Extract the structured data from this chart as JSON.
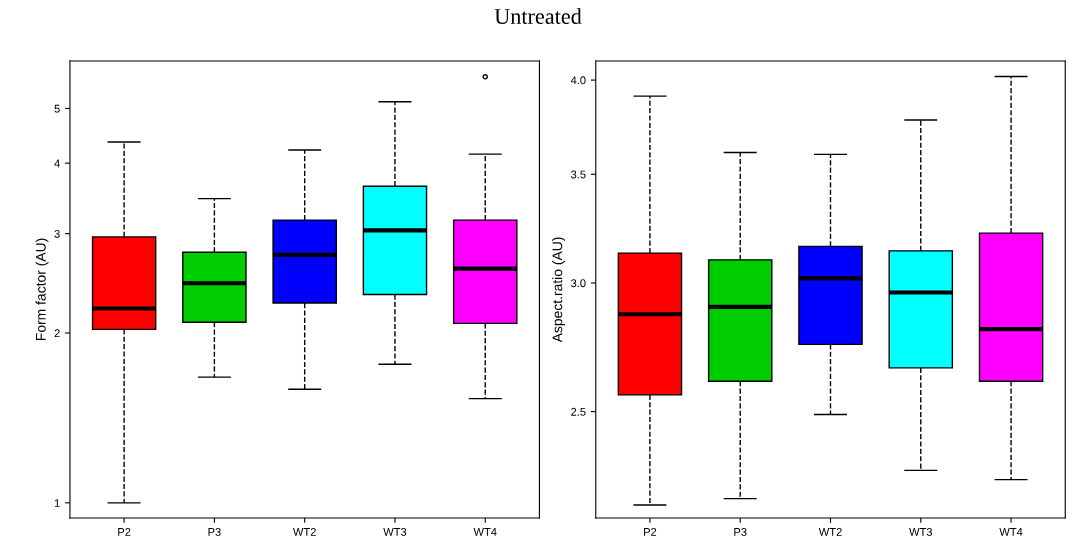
{
  "chart_data": [
    {
      "type": "box",
      "title": "Untreated",
      "ylabel": "Form factor (AU)",
      "log": "y",
      "categories": [
        "P2",
        "P3",
        "WT2",
        "WT3",
        "WT4"
      ],
      "colors": [
        "#ff0000",
        "#00cd00",
        "#0000ff",
        "#00ffff",
        "#ff00ff"
      ],
      "line_style": "dashed",
      "ylim": [
        0.94,
        6.07
      ],
      "yticks": [
        1,
        2,
        3,
        4,
        5
      ],
      "grid": false,
      "boxes": [
        {
          "low": 1.0,
          "q1": 2.03,
          "median": 2.21,
          "q3": 2.96,
          "high": 4.36
        },
        {
          "low": 1.67,
          "q1": 2.09,
          "median": 2.45,
          "q3": 2.78,
          "high": 3.46
        },
        {
          "low": 1.59,
          "q1": 2.26,
          "median": 2.75,
          "q3": 3.17,
          "high": 4.22
        },
        {
          "low": 1.76,
          "q1": 2.34,
          "median": 3.04,
          "q3": 3.64,
          "high": 5.14
        },
        {
          "low": 1.53,
          "q1": 2.08,
          "median": 2.6,
          "q3": 3.17,
          "high": 4.15,
          "outliers": [
            5.69
          ]
        }
      ]
    },
    {
      "type": "box",
      "ylabel": "Aspect.ratio (AU)",
      "log": "y",
      "categories": [
        "P2",
        "P3",
        "WT2",
        "WT3",
        "WT4"
      ],
      "colors": [
        "#ff0000",
        "#00cd00",
        "#0000ff",
        "#00ffff",
        "#ff00ff"
      ],
      "line_style": "dashed",
      "ylim": [
        2.15,
        4.11
      ],
      "yticks": [
        {
          "value": 2.5,
          "label": "2.5"
        },
        {
          "value": 3,
          "label": "3.0"
        },
        {
          "value": 3.5,
          "label": "3.5"
        },
        {
          "value": 4,
          "label": "4.0"
        }
      ],
      "grid": false,
      "boxes": [
        {
          "low": 2.19,
          "q1": 2.56,
          "median": 2.87,
          "q3": 3.13,
          "high": 3.91
        },
        {
          "low": 2.21,
          "q1": 2.61,
          "median": 2.9,
          "q3": 3.1,
          "high": 3.61
        },
        {
          "low": 2.49,
          "q1": 2.75,
          "median": 3.02,
          "q3": 3.16,
          "high": 3.6
        },
        {
          "low": 2.3,
          "q1": 2.66,
          "median": 2.96,
          "q3": 3.14,
          "high": 3.78
        },
        {
          "low": 2.27,
          "q1": 2.61,
          "median": 2.81,
          "q3": 3.22,
          "high": 4.02
        }
      ]
    }
  ]
}
